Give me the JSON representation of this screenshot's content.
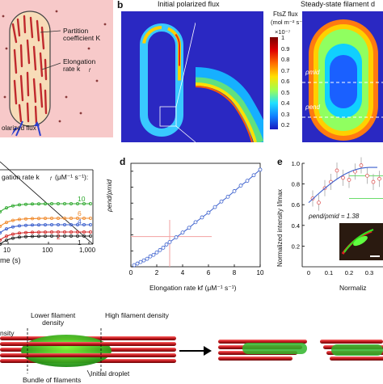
{
  "panel_a": {
    "letter": "",
    "labels": {
      "partition": "Partition\ncoefficient K",
      "elongation": "Elongation\nrate k",
      "elongation_sub": "f",
      "polarized": "olarized flux"
    }
  },
  "panel_b": {
    "letter": "b",
    "title": "Initial polarized flux",
    "colorbar_title_1": "FtsZ flux",
    "colorbar_title_2": "(mol m⁻² s⁻¹)",
    "multiplier": "×10⁻⁷",
    "ticks": [
      "1",
      "0.9",
      "0.8",
      "0.7",
      "0.6",
      "0.5",
      "0.4",
      "0.3",
      "0.2"
    ]
  },
  "panel_c": {
    "title": "Steady-state filament d",
    "rho_mid": "ρmid",
    "rho_end": "ρend"
  },
  "panel_left_middle": {
    "title": "gation rate k",
    "title_sub": "f",
    "title_units": "(μM⁻¹ s⁻¹):",
    "series_labels": [
      "10",
      "6",
      "4",
      "2",
      "1"
    ],
    "xlabel": "me (s)",
    "xticks": [
      "10",
      "100",
      "1,000"
    ],
    "colors": [
      "#2fa92f",
      "#f08a2c",
      "#3a5fcd",
      "#d22a2a",
      "#222222"
    ]
  },
  "panel_d": {
    "letter": "d",
    "ylabel": "ρend/ρmid",
    "xlabel": "Elongation rate kf (μM⁻¹ s⁻¹)",
    "xticks": [
      "0",
      "2",
      "4",
      "6",
      "8",
      "10"
    ],
    "yticks": [
      "1.0",
      "1.2",
      "1.4",
      "1.6",
      "1.8",
      "2.0",
      "2.2"
    ]
  },
  "panel_e": {
    "letter": "e",
    "ylabel": "Normalized intensity I/Imax",
    "yticks": [
      "1.0",
      "0.8",
      "0.6",
      "0.4",
      "0.2"
    ],
    "xticks": [
      "0",
      "0.1",
      "0.2",
      "0.3"
    ],
    "annotation": "ρend/ρmid = 1.38",
    "xlabel": "Normaliz"
  },
  "panel_f": {
    "labels": {
      "density": "nsity",
      "lower": "Lower filament\ndensity",
      "high": "High filament density",
      "droplet": "Initial droplet",
      "bundle": "Bundle of filaments"
    }
  },
  "chart_data": [
    {
      "type": "line",
      "title": "",
      "xlabel": "Elongation rate kf (μM⁻¹ s⁻¹)",
      "ylabel": "ρend/ρmid",
      "xlim": [
        0,
        10
      ],
      "ylim": [
        1.0,
        2.3
      ],
      "series": [
        {
          "name": "",
          "x": [
            0.25,
            0.5,
            0.75,
            1,
            1.25,
            1.5,
            1.75,
            2,
            2.25,
            2.5,
            2.75,
            3,
            3.5,
            4,
            4.5,
            5,
            5.5,
            6,
            6.5,
            7,
            7.5,
            8,
            8.5,
            9,
            9.5,
            10
          ],
          "values": [
            1.02,
            1.04,
            1.06,
            1.08,
            1.1,
            1.13,
            1.15,
            1.18,
            1.21,
            1.24,
            1.28,
            1.31,
            1.37,
            1.43,
            1.49,
            1.56,
            1.62,
            1.68,
            1.75,
            1.82,
            1.88,
            1.95,
            2.02,
            2.08,
            2.15,
            2.22
          ]
        }
      ],
      "marker": {
        "x": 3,
        "y": 1.38
      }
    },
    {
      "type": "scatter",
      "title": "",
      "ylabel": "Normalized intensity I/Imax",
      "xlabel": "Normaliz",
      "series": [
        {
          "name": "",
          "x": [
            0.02,
            0.05,
            0.08,
            0.11,
            0.14,
            0.17,
            0.2,
            0.23,
            0.26,
            0.29,
            0.32,
            0.35
          ],
          "values": [
            0.66,
            0.62,
            0.76,
            0.82,
            0.93,
            0.86,
            0.84,
            0.92,
            0.98,
            0.88,
            0.82,
            0.85
          ]
        }
      ]
    }
  ]
}
